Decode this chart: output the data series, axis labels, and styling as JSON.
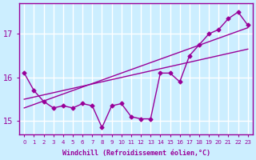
{
  "xlabel": "Windchill (Refroidissement éolien,°C)",
  "ylabel": "",
  "bg_color": "#cceeff",
  "line_color": "#990099",
  "grid_color": "#ffffff",
  "x_hours": [
    0,
    1,
    2,
    3,
    4,
    5,
    6,
    7,
    8,
    9,
    10,
    11,
    12,
    13,
    14,
    15,
    16,
    17,
    18,
    19,
    20,
    21,
    22,
    23
  ],
  "y_data": [
    16.1,
    15.7,
    15.45,
    15.3,
    15.35,
    15.3,
    15.4,
    15.35,
    14.85,
    15.35,
    15.4,
    15.1,
    15.05,
    15.05,
    16.1,
    16.1,
    15.9,
    16.5,
    16.75,
    17.0,
    17.1,
    17.35,
    17.5,
    17.2
  ],
  "y_trend1": [
    15.5,
    15.55,
    15.6,
    15.65,
    15.7,
    15.75,
    15.8,
    15.85,
    15.9,
    15.95,
    16.0,
    16.05,
    16.1,
    16.15,
    16.2,
    16.25,
    16.3,
    16.35,
    16.4,
    16.45,
    16.5,
    16.55,
    16.6,
    16.65
  ],
  "y_trend2": [
    15.3,
    15.38,
    15.46,
    15.54,
    15.62,
    15.7,
    15.78,
    15.86,
    15.94,
    16.02,
    16.1,
    16.18,
    16.26,
    16.34,
    16.42,
    16.5,
    16.58,
    16.66,
    16.74,
    16.82,
    16.9,
    16.98,
    17.06,
    17.14
  ],
  "ylim": [
    14.7,
    17.7
  ],
  "yticks": [
    15,
    16,
    17
  ],
  "xlim": [
    -0.5,
    23.5
  ],
  "xtick_labels": [
    "0",
    "1",
    "2",
    "3",
    "4",
    "5",
    "6",
    "7",
    "8",
    "9",
    "10",
    "11",
    "12",
    "13",
    "14",
    "15",
    "16",
    "17",
    "18",
    "19",
    "20",
    "21",
    "22",
    "23"
  ]
}
